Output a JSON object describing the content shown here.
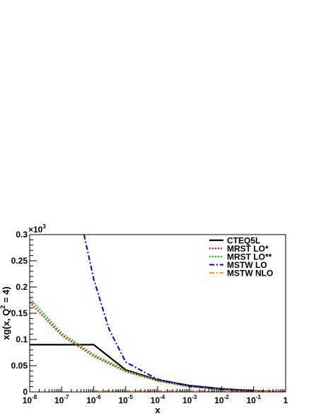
{
  "chart_data": {
    "type": "line",
    "xlabel": "x",
    "ylabel_parts": [
      "xg(x, Q",
      "2",
      " = 4)"
    ],
    "x_scale": "log",
    "xlim": [
      1e-08,
      1
    ],
    "ylim": [
      0,
      0.3
    ],
    "multiplier_label": [
      "×10",
      "3"
    ],
    "x_ticks": [
      {
        "value": 1e-08,
        "base": "10",
        "exp": "-8"
      },
      {
        "value": 1e-07,
        "base": "10",
        "exp": "-7"
      },
      {
        "value": 1e-06,
        "base": "10",
        "exp": "-6"
      },
      {
        "value": 1e-05,
        "base": "10",
        "exp": "-5"
      },
      {
        "value": 0.0001,
        "base": "10",
        "exp": "-4"
      },
      {
        "value": 0.001,
        "base": "10",
        "exp": "-3"
      },
      {
        "value": 0.01,
        "base": "10",
        "exp": "-2"
      },
      {
        "value": 0.1,
        "base": "10",
        "exp": "-1"
      },
      {
        "value": 1,
        "base": "1",
        "exp": ""
      }
    ],
    "y_ticks": [
      {
        "value": 0,
        "label": "0"
      },
      {
        "value": 0.05,
        "label": "0.05"
      },
      {
        "value": 0.1,
        "label": "0.1"
      },
      {
        "value": 0.15,
        "label": "0.15"
      },
      {
        "value": 0.2,
        "label": "0.2"
      },
      {
        "value": 0.25,
        "label": "0.25"
      },
      {
        "value": 0.3,
        "label": "0.3"
      }
    ],
    "legend_position": "top-right",
    "series": [
      {
        "name": "CTEQ5L",
        "color": "#000000",
        "style": "solid",
        "width": 2.2,
        "x": [
          1e-08,
          1e-07,
          1e-06,
          1e-05,
          0.0001,
          0.001,
          0.01,
          0.1,
          1
        ],
        "y": [
          0.09,
          0.09,
          0.09,
          0.042,
          0.023,
          0.012,
          0.006,
          0.002,
          0.0
        ]
      },
      {
        "name": "MRST LO*",
        "color": "#ff0000",
        "style": "dotted",
        "width": 2.2,
        "x": [
          1e-08,
          1e-07,
          1e-06,
          1e-05,
          0.0001,
          0.001,
          0.01,
          0.1,
          1
        ],
        "y": [
          0.171,
          0.108,
          0.068,
          0.039,
          0.021,
          0.01,
          0.005,
          0.0015,
          0.0
        ]
      },
      {
        "name": "MRST LO**",
        "color": "#00cc00",
        "style": "dotted",
        "width": 2.2,
        "x": [
          1e-08,
          1e-07,
          1e-06,
          1e-05,
          0.0001,
          0.001,
          0.01,
          0.1,
          1
        ],
        "y": [
          0.178,
          0.112,
          0.071,
          0.041,
          0.022,
          0.011,
          0.005,
          0.0015,
          0.0
        ]
      },
      {
        "name": "MSTW LO",
        "color": "#0000cc",
        "style": "dashdot",
        "width": 2.0,
        "x": [
          5e-07,
          1e-06,
          3e-06,
          1e-05,
          0.0001,
          0.001,
          0.01,
          0.1,
          1
        ],
        "y": [
          0.3,
          0.215,
          0.12,
          0.057,
          0.024,
          0.011,
          0.005,
          0.001,
          0.0
        ]
      },
      {
        "name": "MSTW NLO",
        "color": "#ff6600",
        "style": "dashdot",
        "width": 1.4,
        "x": [
          1e-06,
          1e-05,
          0.0001,
          0.001,
          0.01,
          0.1,
          1
        ],
        "y": [
          0.002,
          0.002,
          0.002,
          0.002,
          0.002,
          0.001,
          0.0
        ]
      }
    ]
  }
}
